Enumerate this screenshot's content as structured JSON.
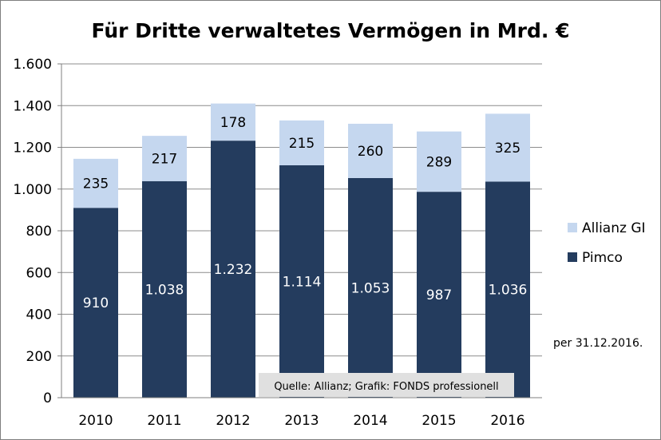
{
  "chart_data": {
    "type": "bar",
    "stacked": true,
    "title": "Für Dritte verwaltetes Vermögen in Mrd. €",
    "categories": [
      "2010",
      "2011",
      "2012",
      "2013",
      "2014",
      "2015",
      "2016"
    ],
    "series": [
      {
        "name": "Pimco",
        "color": "#243c5e",
        "values": [
          910,
          1038,
          1232,
          1114,
          1053,
          987,
          1036
        ],
        "labels": [
          "910",
          "1.038",
          "1.232",
          "1.114",
          "1.053",
          "987",
          "1.036"
        ]
      },
      {
        "name": "Allianz GI",
        "color": "#c5d7ef",
        "values": [
          235,
          217,
          178,
          215,
          260,
          289,
          325
        ],
        "labels": [
          "235",
          "217",
          "178",
          "215",
          "260",
          "289",
          "325"
        ]
      }
    ],
    "ylim": [
      0,
      1600
    ],
    "yticks": [
      0,
      200,
      400,
      600,
      800,
      1000,
      1200,
      1400,
      1600
    ],
    "ytick_labels": [
      "0",
      "200",
      "400",
      "600",
      "800",
      "1.000",
      "1.200",
      "1.400",
      "1.600"
    ],
    "grid": true,
    "legend_position": "right",
    "annotation": "per 31.12.2016.",
    "source": "Quelle: Allianz; Grafik: FONDS professionell"
  }
}
